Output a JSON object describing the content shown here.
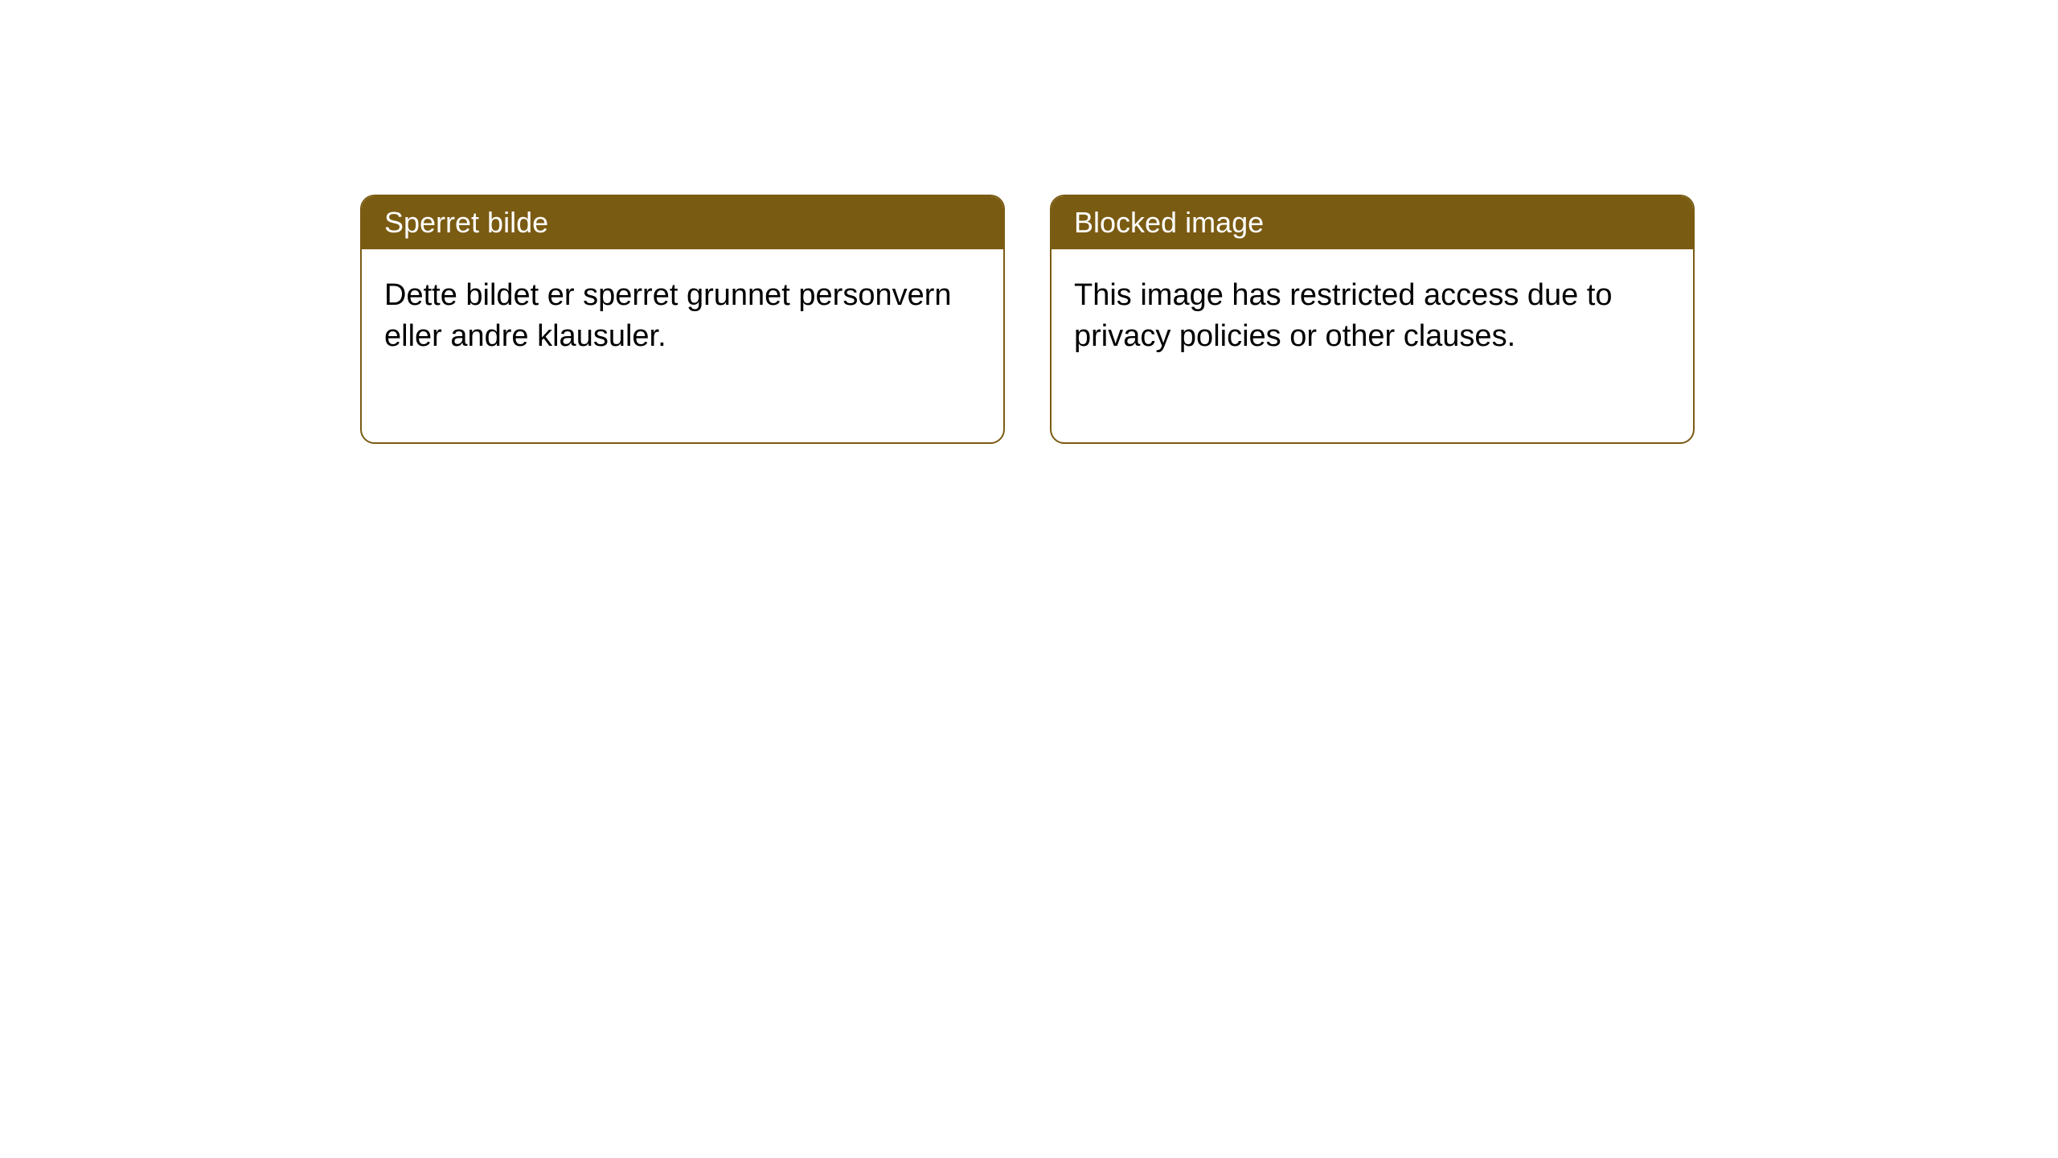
{
  "notices": [
    {
      "title": "Sperret bilde",
      "body": "Dette bildet er sperret grunnet personvern eller andre klausuler."
    },
    {
      "title": "Blocked image",
      "body": "This image has restricted access due to privacy policies or other clauses."
    }
  ],
  "style": {
    "header_bg": "#7a5b12",
    "header_text_color": "#ffffff",
    "border_color": "#7a5b12",
    "card_bg": "#ffffff",
    "body_text_color": "#000000",
    "title_fontsize": 36,
    "body_fontsize": 38,
    "border_radius": 18
  }
}
